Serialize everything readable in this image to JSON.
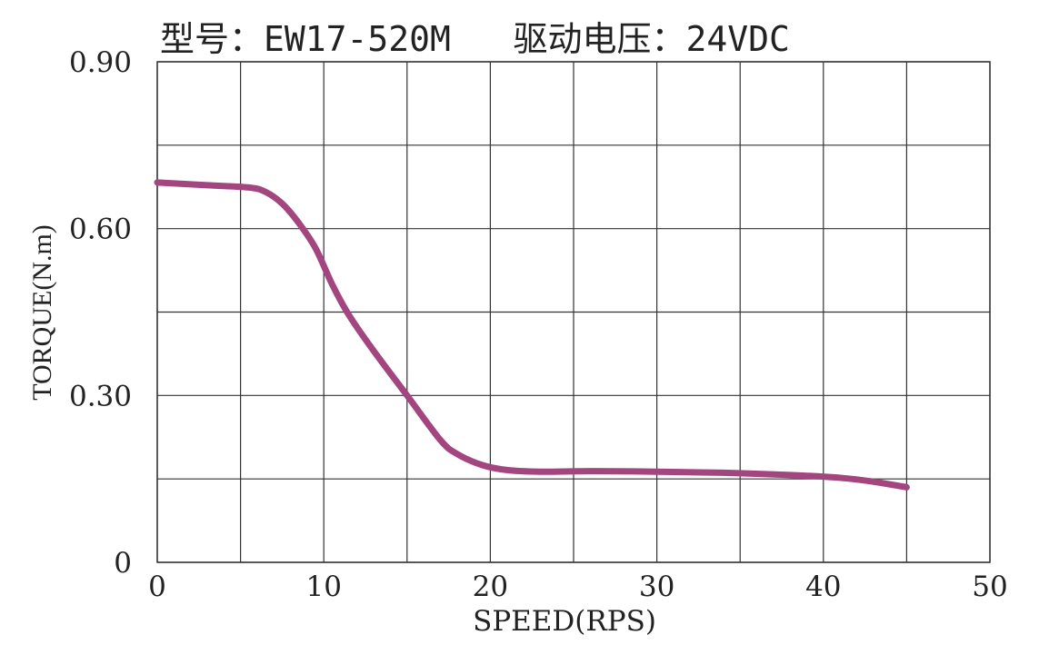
{
  "chart_data": {
    "type": "line",
    "title": "型号：EW17-520M   驱动电压：24VDC",
    "xlabel": "SPEED(RPS)",
    "ylabel": "TORQUE(N.m)",
    "xlim": [
      0,
      50
    ],
    "ylim": [
      0,
      0.9
    ],
    "x_ticks": [
      0,
      10,
      20,
      30,
      40,
      50
    ],
    "x_tick_labels": [
      "0",
      "10",
      "20",
      "30",
      "40",
      "50"
    ],
    "y_ticks": [
      0,
      0.3,
      0.6,
      0.9
    ],
    "y_tick_labels": [
      "0",
      "0.30",
      "0.60",
      "0.90"
    ],
    "y_grid": [
      0,
      0.15,
      0.3,
      0.45,
      0.6,
      0.75,
      0.9
    ],
    "x_grid": [
      0,
      5,
      10,
      15,
      20,
      25,
      30,
      35,
      40,
      45,
      50
    ],
    "grid": true,
    "series": [
      {
        "color": "#a3457f",
        "x": [
          0,
          3,
          5.5,
          6.5,
          7.5,
          8.5,
          9.5,
          10.5,
          11.5,
          13,
          15,
          17,
          18,
          19.5,
          21,
          23,
          26,
          30,
          34,
          38,
          41,
          43,
          45
        ],
        "y": [
          0.683,
          0.678,
          0.674,
          0.666,
          0.645,
          0.61,
          0.565,
          0.5,
          0.445,
          0.38,
          0.3,
          0.22,
          0.195,
          0.175,
          0.166,
          0.163,
          0.164,
          0.163,
          0.161,
          0.157,
          0.152,
          0.145,
          0.135
        ]
      }
    ]
  }
}
